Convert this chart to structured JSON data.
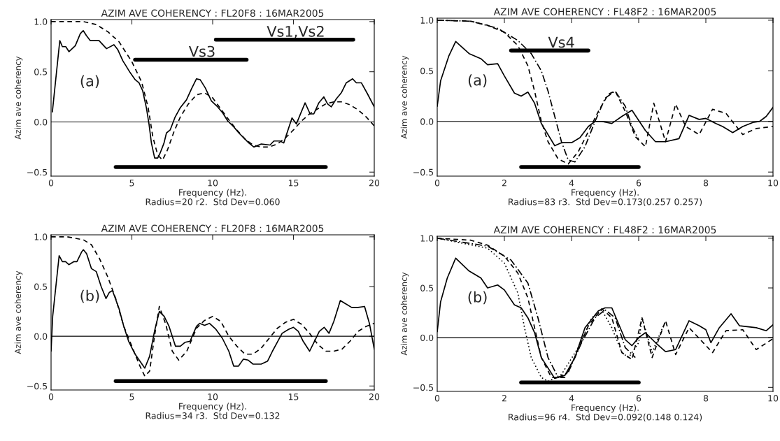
{
  "chart_data": [
    {
      "type": "line",
      "title": "AZIM AVE COHERENCY : FL20F8 : 16MAR2005",
      "xlabel": "Frequency (Hz).",
      "ylabel": "Azim ave coherency",
      "xlim": [
        0,
        20
      ],
      "xticks": [
        0,
        5,
        10,
        15,
        20
      ],
      "ylim": [
        -0.54,
        1.02
      ],
      "yticks": [
        {
          "value": -0.5,
          "label": "−0.5"
        },
        {
          "value": 0,
          "label": "0.0"
        },
        {
          "value": 0.5,
          "label": "0.5"
        },
        {
          "value": 1,
          "label": "1.0"
        }
      ],
      "ref_lines": [
        {
          "axis": "y",
          "value": 0,
          "color": "#000000"
        }
      ],
      "annotations": [
        "Radius=20 r2.  Std Dev=0.060",
        "(a)",
        "Vs3",
        "Vs1,Vs2"
      ],
      "series": [
        {
          "color": "#000000",
          "line_style": "solid",
          "x": [
            0.08,
            0.54,
            0.7,
            0.91,
            1.11,
            1.5,
            1.81,
            1.99,
            2.19,
            2.43,
            2.97,
            3.43,
            3.89,
            4.13,
            4.44,
            4.9,
            5.21,
            5.44,
            5.67,
            5.9,
            6.06,
            6.21,
            6.41,
            6.6,
            6.75,
            6.99,
            7.14,
            7.37,
            7.68,
            7.99,
            8.38,
            8.69,
            9.0,
            9.23,
            9.54,
            9.92,
            10.31,
            10.62,
            10.93,
            11.31,
            11.62,
            11.93,
            12.24,
            12.55,
            13.01,
            13.55,
            13.79,
            14.17,
            14.4,
            14.56,
            14.91,
            15.18,
            15.41,
            15.72,
            16.03,
            16.26,
            16.57,
            16.88,
            17.11,
            17.34,
            17.65,
            17.96,
            18.27,
            18.66,
            18.89,
            19.2,
            19.58,
            20
          ],
          "values": [
            0.1,
            0.81,
            0.75,
            0.75,
            0.7,
            0.76,
            0.88,
            0.91,
            0.86,
            0.81,
            0.81,
            0.73,
            0.77,
            0.72,
            0.61,
            0.49,
            0.42,
            0.39,
            0.31,
            0.14,
            -0.02,
            -0.21,
            -0.36,
            -0.36,
            -0.31,
            -0.21,
            -0.11,
            -0.08,
            0.05,
            0.14,
            0.22,
            0.33,
            0.43,
            0.42,
            0.34,
            0.21,
            0.15,
            0.09,
            0.01,
            -0.05,
            -0.11,
            -0.16,
            -0.21,
            -0.25,
            -0.22,
            -0.23,
            -0.19,
            -0.19,
            -0.21,
            -0.13,
            0.04,
            -0.02,
            0.07,
            0.19,
            0.08,
            0.08,
            0.19,
            0.25,
            0.18,
            0.15,
            0.23,
            0.29,
            0.39,
            0.43,
            0.39,
            0.39,
            0.28,
            0.15
          ]
        },
        {
          "color": "#000000",
          "line_style": "dashed",
          "x": [
            0,
            2,
            2.8,
            3.5,
            4.2,
            5.0,
            5.6,
            6.0,
            6.3,
            6.6,
            6.9,
            7.2,
            7.6,
            8.0,
            8.5,
            9.0,
            9.5,
            10.0,
            10.5,
            11.0,
            11.5,
            12.0,
            12.5,
            13.0,
            13.5,
            14.0,
            14.5,
            15.0,
            15.5,
            16.0,
            16.5,
            17.0,
            17.5,
            18.0,
            18.5,
            19.0,
            19.5,
            20.0
          ],
          "values": [
            1.0,
            1.0,
            0.97,
            0.9,
            0.8,
            0.6,
            0.4,
            0.15,
            -0.15,
            -0.33,
            -0.38,
            -0.28,
            -0.1,
            0.05,
            0.18,
            0.27,
            0.29,
            0.24,
            0.13,
            0.02,
            -0.08,
            -0.17,
            -0.23,
            -0.25,
            -0.25,
            -0.22,
            -0.16,
            -0.08,
            0.01,
            0.08,
            0.13,
            0.18,
            0.2,
            0.2,
            0.17,
            0.12,
            0.05,
            -0.04
          ]
        },
        {
          "color": "#000000",
          "line_style": "solid",
          "x": [
            5.2,
            12.1
          ],
          "values": [
            0.62,
            0.62
          ]
        },
        {
          "color": "#000000",
          "line_style": "solid",
          "x": [
            10.2,
            18.7
          ],
          "values": [
            0.82,
            0.82
          ]
        },
        {
          "color": "#000000",
          "line_style": "solid",
          "x": [
            4,
            17
          ],
          "values": [
            -0.45,
            -0.45
          ]
        }
      ]
    },
    {
      "type": "line",
      "title": "AZIM AVE COHERENCY : FL48F2 : 16MAR2005",
      "xlabel": "Frequency (Hz).",
      "ylabel": "Azim ave coherency",
      "xlim": [
        0,
        10
      ],
      "xticks": [
        0,
        2,
        4,
        6,
        8,
        10
      ],
      "ylim": [
        -0.54,
        1.02
      ],
      "yticks": [
        {
          "value": -0.5,
          "label": "−0.5"
        },
        {
          "value": 0,
          "label": "0.0"
        },
        {
          "value": 0.5,
          "label": "0.5"
        },
        {
          "value": 1,
          "label": "1.0"
        }
      ],
      "ref_lines": [
        {
          "axis": "y",
          "value": 0,
          "color": "#000000"
        }
      ],
      "annotations": [
        "Radius=83 r3.  Std Dev=0.173(0.257 0.257)",
        "(a)",
        "Vs4"
      ],
      "series": [
        {
          "color": "#000000",
          "line_style": "solid",
          "x": [
            0,
            0.1,
            0.35,
            0.55,
            0.95,
            1.3,
            1.5,
            1.8,
            2.0,
            2.3,
            2.5,
            2.7,
            2.9,
            3.1,
            3.5,
            3.7,
            4.0,
            4.25,
            4.5,
            4.7,
            4.9,
            5.2,
            5.5,
            5.8,
            6.2,
            6.5,
            6.8,
            7.2,
            7.5,
            7.8,
            8.0,
            8.3,
            8.5,
            8.8,
            9.1,
            9.4,
            9.6,
            9.8,
            10
          ],
          "values": [
            0.15,
            0.4,
            0.65,
            0.79,
            0.67,
            0.62,
            0.56,
            0.57,
            0.45,
            0.28,
            0.25,
            0.29,
            0.18,
            -0.02,
            -0.24,
            -0.21,
            -0.21,
            -0.16,
            -0.05,
            0.0,
            0.0,
            -0.02,
            0.05,
            0.11,
            -0.09,
            -0.2,
            -0.2,
            -0.17,
            0.06,
            0.02,
            0.03,
            -0.02,
            -0.05,
            -0.11,
            -0.05,
            -0.01,
            0.0,
            0.05,
            0.14
          ]
        },
        {
          "color": "#000000",
          "line_style": "dashed",
          "x": [
            0,
            1,
            1.5,
            2.0,
            2.4,
            2.7,
            2.9,
            3.1,
            3.3,
            3.6,
            3.9,
            4.2,
            4.5,
            4.8,
            5.1,
            5.3,
            5.6,
            5.9,
            6.2,
            6.45,
            6.8,
            7.1,
            7.4,
            7.8,
            8.2,
            8.6,
            9.1,
            9.5,
            10
          ],
          "values": [
            1.0,
            0.99,
            0.95,
            0.88,
            0.75,
            0.55,
            0.3,
            0.0,
            -0.2,
            -0.37,
            -0.42,
            -0.3,
            -0.1,
            0.1,
            0.27,
            0.3,
            0.1,
            -0.15,
            -0.25,
            0.18,
            -0.2,
            0.17,
            -0.05,
            -0.13,
            0.12,
            0.08,
            -0.13,
            -0.07,
            -0.05
          ]
        },
        {
          "color": "#000000",
          "line_style": "dashdot",
          "x": [
            0,
            1,
            1.8,
            2.4,
            2.8,
            3.1,
            3.3,
            3.5,
            3.7,
            3.9,
            4.1,
            4.4,
            4.7,
            5.0,
            5.3,
            5.6,
            5.8,
            6.0
          ],
          "values": [
            1.0,
            0.99,
            0.92,
            0.8,
            0.67,
            0.5,
            0.3,
            0.05,
            -0.2,
            -0.38,
            -0.4,
            -0.25,
            0.0,
            0.23,
            0.3,
            0.15,
            -0.05,
            -0.18
          ]
        },
        {
          "color": "#000000",
          "line_style": "solid",
          "x": [
            2.2,
            4.5
          ],
          "values": [
            0.7,
            0.7
          ]
        },
        {
          "color": "#000000",
          "line_style": "solid",
          "x": [
            2.5,
            6
          ],
          "values": [
            -0.45,
            -0.45
          ]
        }
      ]
    },
    {
      "type": "line",
      "title": "AZIM AVE COHERENCY : FL20F8 : 16MAR2005",
      "xlabel": "Frequency (Hz).",
      "ylabel": "Azim ave coherency",
      "xlim": [
        0,
        20
      ],
      "xticks": [
        0,
        5,
        10,
        15,
        20
      ],
      "ylim": [
        -0.54,
        1.02
      ],
      "yticks": [
        {
          "value": -0.5,
          "label": "−0.5"
        },
        {
          "value": 0,
          "label": "0.0"
        },
        {
          "value": 0.5,
          "label": "0.5"
        },
        {
          "value": 1,
          "label": "1.0"
        }
      ],
      "ref_lines": [
        {
          "axis": "y",
          "value": 0,
          "color": "#000000"
        }
      ],
      "annotations": [
        "Radius=34 r3.  Std Dev=0.132",
        "(b)"
      ],
      "series": [
        {
          "color": "#000000",
          "line_style": "solid",
          "x": [
            0,
            0.1,
            0.5,
            0.7,
            0.9,
            1.1,
            1.4,
            1.6,
            1.9,
            2.0,
            2.2,
            2.5,
            2.8,
            3.1,
            3.4,
            3.6,
            3.8,
            4.2,
            4.5,
            4.8,
            5.2,
            5.5,
            5.8,
            6.1,
            6.4,
            6.7,
            7.0,
            7.3,
            7.7,
            8.0,
            8.3,
            8.6,
            9.0,
            9.2,
            9.5,
            9.8,
            10.2,
            10.6,
            11.0,
            11.3,
            11.6,
            11.9,
            12.2,
            12.5,
            13.0,
            13.4,
            13.7,
            14.0,
            14.3,
            14.7,
            15.0,
            15.3,
            15.6,
            16.0,
            16.3,
            16.6,
            16.9,
            17.2,
            17.5,
            17.9,
            18.2,
            18.6,
            19.0,
            19.4,
            19.7,
            20
          ],
          "values": [
            -0.15,
            0.2,
            0.81,
            0.75,
            0.75,
            0.72,
            0.75,
            0.75,
            0.85,
            0.87,
            0.83,
            0.68,
            0.65,
            0.5,
            0.38,
            0.44,
            0.46,
            0.28,
            0.1,
            -0.05,
            -0.18,
            -0.25,
            -0.32,
            -0.2,
            0.05,
            0.25,
            0.2,
            0.1,
            -0.1,
            -0.1,
            -0.06,
            -0.05,
            0.1,
            0.13,
            0.11,
            0.13,
            0.07,
            -0.02,
            -0.15,
            -0.3,
            -0.3,
            -0.23,
            -0.24,
            -0.28,
            -0.28,
            -0.25,
            -0.15,
            -0.06,
            0.03,
            0.07,
            0.09,
            0.05,
            -0.05,
            -0.15,
            -0.05,
            0.05,
            0.09,
            0.03,
            0.15,
            0.36,
            0.33,
            0.29,
            0.29,
            0.3,
            0.13,
            -0.13
          ]
        },
        {
          "color": "#000000",
          "line_style": "dashed",
          "x": [
            0,
            1,
            2,
            2.5,
            3.0,
            3.5,
            4.0,
            4.5,
            5.0,
            5.5,
            5.8,
            6.1,
            6.4,
            6.7,
            7.1,
            7.5,
            7.9,
            8.4,
            9.0,
            9.5,
            10.0,
            10.5,
            11.0,
            11.5,
            12.0,
            12.5,
            13.0,
            13.5,
            14.0,
            14.5,
            15.0,
            15.5,
            16.0,
            16.5,
            17.0,
            17.5,
            18.0,
            18.5,
            19.0,
            19.5,
            20
          ],
          "values": [
            1.0,
            1.0,
            0.97,
            0.92,
            0.78,
            0.6,
            0.38,
            0.1,
            -0.1,
            -0.3,
            -0.4,
            -0.35,
            0.0,
            0.3,
            0.12,
            -0.15,
            -0.24,
            -0.15,
            0.08,
            0.16,
            0.2,
            0.15,
            0.0,
            -0.1,
            -0.18,
            -0.18,
            -0.12,
            -0.02,
            0.08,
            0.14,
            0.17,
            0.12,
            0.03,
            -0.08,
            -0.15,
            -0.15,
            -0.13,
            -0.05,
            0.05,
            0.1,
            0.13
          ]
        },
        {
          "color": "#000000",
          "line_style": "solid",
          "x": [
            4,
            17
          ],
          "values": [
            -0.45,
            -0.45
          ]
        }
      ]
    },
    {
      "type": "line",
      "title": "AZIM AVE COHERENCY : FL48F2 : 16MAR2005",
      "xlabel": "Frequency (Hz).",
      "ylabel": "Azim ave coherency",
      "xlim": [
        0,
        10
      ],
      "xticks": [
        0,
        2,
        4,
        6,
        8,
        10
      ],
      "ylim": [
        -0.54,
        1.02
      ],
      "yticks": [
        {
          "value": -0.5,
          "label": "−0.5"
        },
        {
          "value": 0,
          "label": "0.0"
        },
        {
          "value": 0.5,
          "label": "0.5"
        },
        {
          "value": 1,
          "label": "1.0"
        }
      ],
      "ref_lines": [
        {
          "axis": "y",
          "value": 0,
          "color": "#000000"
        }
      ],
      "annotations": [
        "Radius=96 r4.  Std Dev=0.092(0.148 0.124)",
        "(b)"
      ],
      "series": [
        {
          "color": "#000000",
          "line_style": "solid",
          "x": [
            0,
            0.1,
            0.3,
            0.55,
            0.95,
            1.3,
            1.5,
            1.8,
            2.0,
            2.3,
            2.5,
            2.7,
            2.9,
            3.1,
            3.5,
            3.8,
            4.1,
            4.4,
            4.8,
            5.0,
            5.2,
            5.6,
            5.8,
            6.0,
            6.2,
            6.5,
            6.8,
            7.1,
            7.5,
            7.8,
            8.0,
            8.15,
            8.4,
            8.75,
            9.0,
            9.5,
            9.8,
            10
          ],
          "values": [
            0.06,
            0.36,
            0.6,
            0.8,
            0.67,
            0.6,
            0.5,
            0.53,
            0.48,
            0.33,
            0.3,
            0.2,
            0.05,
            -0.2,
            -0.41,
            -0.38,
            -0.2,
            0.1,
            0.27,
            0.3,
            0.3,
            -0.02,
            -0.08,
            0.0,
            0.05,
            -0.05,
            -0.14,
            -0.12,
            0.17,
            0.12,
            0.08,
            -0.05,
            0.1,
            0.24,
            0.12,
            0.1,
            0.07,
            0.13
          ]
        },
        {
          "color": "#000000",
          "line_style": "dashed",
          "x": [
            0,
            1,
            1.5,
            2.0,
            2.4,
            2.7,
            2.9,
            3.1,
            3.4,
            3.8,
            4.2,
            4.5,
            4.9,
            5.2,
            5.5,
            5.8,
            6.1,
            6.4,
            6.8,
            7.1,
            7.5,
            8.2,
            8.6,
            9.1,
            9.5,
            10
          ],
          "values": [
            1.0,
            0.98,
            0.93,
            0.82,
            0.65,
            0.4,
            0.1,
            -0.2,
            -0.4,
            -0.4,
            -0.12,
            0.12,
            0.29,
            0.2,
            -0.15,
            -0.22,
            0.2,
            -0.2,
            0.17,
            -0.17,
            0.1,
            -0.15,
            0.07,
            0.08,
            -0.12,
            -0.01
          ]
        },
        {
          "color": "#000000",
          "line_style": "dashdot",
          "x": [
            0,
            1.5,
            2.2,
            2.7,
            3.0,
            3.3,
            3.6,
            3.9,
            4.3,
            4.7,
            5.0,
            5.3,
            5.6,
            5.9
          ],
          "values": [
            1.0,
            0.92,
            0.78,
            0.55,
            0.2,
            -0.2,
            -0.4,
            -0.35,
            -0.05,
            0.2,
            0.28,
            0.2,
            -0.1,
            -0.2
          ]
        },
        {
          "color": "#000000",
          "line_style": "dotted",
          "x": [
            0,
            1.5,
            2.0,
            2.4,
            2.6,
            2.8,
            3.1,
            3.3,
            3.7,
            4.2,
            4.6,
            4.9,
            5.2,
            5.5,
            5.7,
            6.0,
            6.1,
            6.4,
            6.8
          ],
          "values": [
            1.0,
            0.9,
            0.75,
            0.45,
            0.1,
            -0.2,
            -0.4,
            -0.44,
            -0.37,
            -0.1,
            0.2,
            0.28,
            0.1,
            -0.15,
            -0.2,
            -0.05,
            0.2,
            -0.15,
            0.17
          ]
        },
        {
          "color": "#000000",
          "line_style": "solid",
          "x": [
            2.5,
            6
          ],
          "values": [
            -0.45,
            -0.45
          ]
        }
      ]
    }
  ]
}
